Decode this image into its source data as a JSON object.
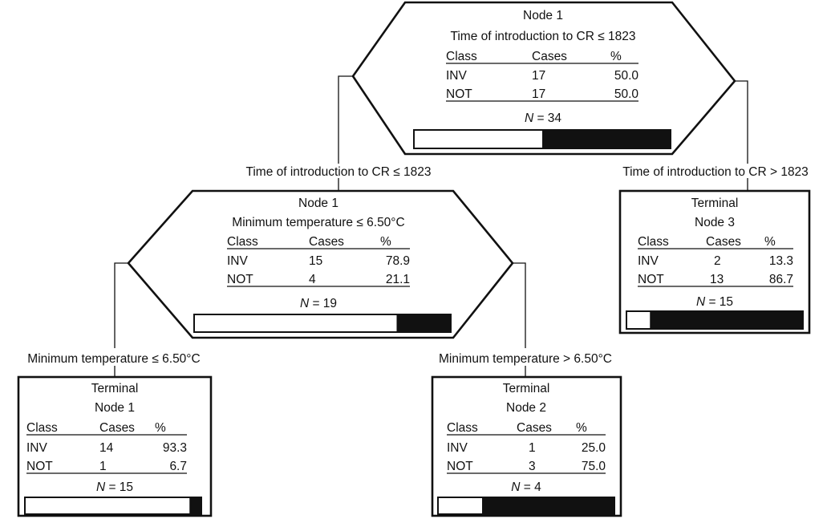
{
  "headers": {
    "class": "Class",
    "cases": "Cases",
    "pct": "%"
  },
  "nodes": {
    "root": {
      "title": "Node 1",
      "split": "Time of introduction to CR ≤ 1823",
      "rows": [
        {
          "cls": "INV",
          "cases": "17",
          "pct": "50.0"
        },
        {
          "cls": "NOT",
          "cases": "17",
          "pct": "50.0"
        }
      ],
      "n_prefix": "N",
      "n_text": " = 34",
      "inv_fraction": 0.5
    },
    "inner": {
      "title": "Node 1",
      "split": "Minimum temperature ≤ 6.50°C",
      "rows": [
        {
          "cls": "INV",
          "cases": "15",
          "pct": "78.9"
        },
        {
          "cls": "NOT",
          "cases": "4",
          "pct": "21.1"
        }
      ],
      "n_prefix": "N",
      "n_text": " = 19",
      "inv_fraction": 0.789
    },
    "t1": {
      "line1": "Terminal",
      "line2": "Node 1",
      "rows": [
        {
          "cls": "INV",
          "cases": "14",
          "pct": "93.3"
        },
        {
          "cls": "NOT",
          "cases": "1",
          "pct": "6.7"
        }
      ],
      "n_prefix": "N",
      "n_text": " = 15",
      "inv_fraction": 0.933
    },
    "t2": {
      "line1": "Terminal",
      "line2": "Node 2",
      "rows": [
        {
          "cls": "INV",
          "cases": "1",
          "pct": "25.0"
        },
        {
          "cls": "NOT",
          "cases": "3",
          "pct": "75.0"
        }
      ],
      "n_prefix": "N",
      "n_text": " = 4",
      "inv_fraction": 0.25
    },
    "t3": {
      "line1": "Terminal",
      "line2": "Node 3",
      "rows": [
        {
          "cls": "INV",
          "cases": "2",
          "pct": "13.3"
        },
        {
          "cls": "NOT",
          "cases": "13",
          "pct": "86.7"
        }
      ],
      "n_prefix": "N",
      "n_text": " = 15",
      "inv_fraction": 0.133
    }
  },
  "edges": {
    "root_left": "Time of introduction to CR ≤ 1823",
    "root_right": "Time of introduction to CR > 1823",
    "inner_left": "Minimum temperature ≤ 6.50°C",
    "inner_right": "Minimum temperature > 6.50°C"
  }
}
